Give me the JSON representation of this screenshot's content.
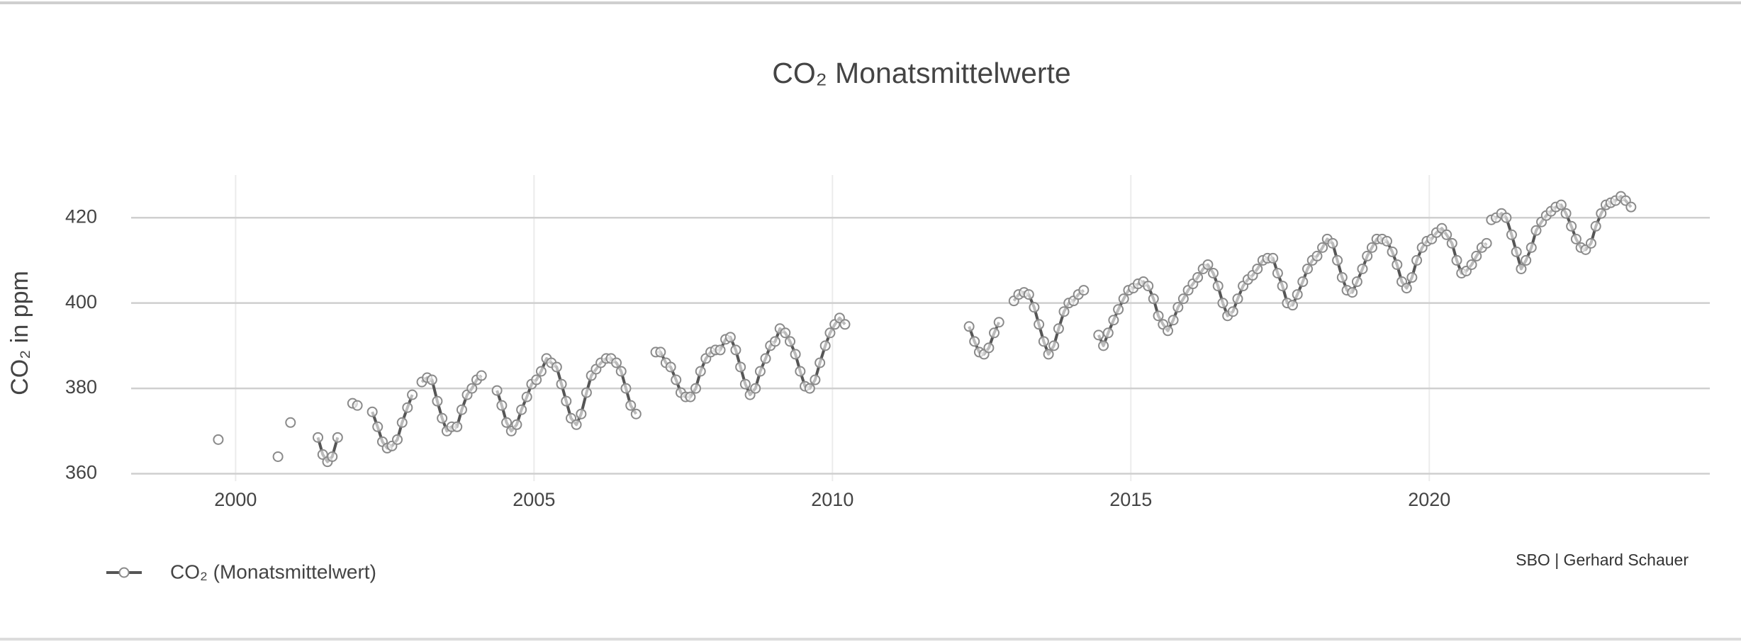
{
  "chart_data": {
    "type": "line",
    "title": "CO₂ Monatsmittelwerte",
    "y_label": "CO₂ in ppm",
    "source": "SBO | Gerhard Schauer",
    "xlim": [
      1998.25,
      2024.7
    ],
    "ylim": [
      356.6,
      430
    ],
    "xticks": [
      2000,
      2005,
      2010,
      2015,
      2020
    ],
    "yticks": [
      360,
      380,
      400,
      420
    ],
    "grid": true,
    "legend": "bottom-left",
    "series": [
      {
        "name": "CO₂ (Monatsmittelwert)",
        "color": "#555555",
        "x": [
          1999.71,
          null,
          2000.71,
          null,
          2000.92,
          null,
          2001.38,
          2001.46,
          2001.54,
          2001.62,
          2001.71,
          null,
          2001.96,
          2002.04,
          null,
          2002.29,
          2002.38,
          2002.46,
          2002.54,
          2002.62,
          2002.71,
          2002.79,
          2002.88,
          2002.96,
          null,
          2003.12,
          2003.21,
          2003.29,
          2003.38,
          2003.46,
          2003.54,
          2003.62,
          2003.71,
          2003.79,
          2003.88,
          2003.96,
          2004.04,
          2004.12,
          null,
          2004.38,
          2004.46,
          2004.54,
          2004.62,
          2004.71,
          2004.79,
          2004.88,
          2004.96,
          2005.04,
          2005.12,
          2005.21,
          2005.29,
          2005.38,
          2005.46,
          2005.54,
          2005.62,
          2005.71,
          2005.79,
          2005.88,
          2005.96,
          2006.04,
          2006.12,
          2006.21,
          2006.29,
          2006.38,
          2006.46,
          2006.54,
          2006.62,
          2006.71,
          null,
          2007.04,
          2007.12,
          2007.21,
          2007.29,
          2007.38,
          2007.46,
          2007.54,
          2007.62,
          2007.71,
          2007.79,
          2007.88,
          2007.96,
          2008.04,
          2008.12,
          2008.21,
          2008.29,
          2008.38,
          2008.46,
          2008.54,
          2008.62,
          2008.71,
          2008.79,
          2008.88,
          2008.96,
          2009.04,
          2009.12,
          2009.21,
          2009.29,
          2009.38,
          2009.46,
          2009.54,
          2009.62,
          2009.71,
          2009.79,
          2009.88,
          2009.96,
          2010.04,
          2010.12,
          2010.21,
          null,
          2012.29,
          2012.38,
          2012.46,
          2012.54,
          2012.62,
          2012.71,
          2012.79,
          null,
          2013.04,
          2013.12,
          2013.21,
          2013.29,
          2013.38,
          2013.46,
          2013.54,
          2013.62,
          2013.71,
          2013.79,
          2013.88,
          2013.96,
          2014.04,
          2014.12,
          2014.21,
          null,
          2014.46,
          2014.54,
          2014.62,
          2014.71,
          2014.79,
          2014.88,
          2014.96,
          2015.04,
          2015.12,
          2015.21,
          2015.29,
          2015.38,
          2015.46,
          2015.54,
          2015.62,
          2015.71,
          2015.79,
          2015.88,
          2015.96,
          2016.04,
          2016.12,
          2016.21,
          2016.29,
          2016.38,
          2016.46,
          2016.54,
          2016.62,
          2016.71,
          2016.79,
          2016.88,
          2016.96,
          2017.04,
          2017.12,
          2017.21,
          2017.29,
          2017.38,
          2017.46,
          2017.54,
          2017.62,
          2017.71,
          2017.79,
          2017.88,
          2017.96,
          2018.04,
          2018.12,
          2018.21,
          2018.29,
          2018.38,
          2018.46,
          2018.54,
          2018.62,
          2018.71,
          2018.79,
          2018.88,
          2018.96,
          2019.04,
          2019.12,
          2019.21,
          2019.29,
          2019.38,
          2019.46,
          2019.54,
          2019.62,
          2019.71,
          2019.79,
          2019.88,
          2019.96,
          2020.04,
          2020.12,
          2020.21,
          2020.29,
          2020.38,
          2020.46,
          2020.54,
          2020.62,
          2020.71,
          2020.79,
          2020.88,
          2020.96,
          null,
          2021.04,
          2021.12,
          2021.21,
          2021.29,
          2021.38,
          2021.46,
          2021.54,
          2021.62,
          2021.71,
          2021.79,
          2021.88,
          2021.96,
          2022.04,
          2022.12,
          2022.21,
          2022.29,
          2022.38,
          2022.46,
          2022.54,
          2022.62,
          2022.71,
          2022.79,
          2022.88,
          2022.96,
          2023.04,
          2023.12,
          2023.21,
          2023.29,
          2023.38
        ],
        "values": [
          368,
          null,
          364,
          null,
          372,
          null,
          368.5,
          364.5,
          362.8,
          364,
          368.5,
          null,
          376.5,
          376,
          null,
          374.5,
          371,
          367.5,
          366,
          366.5,
          368,
          372,
          375.5,
          378.5,
          null,
          381.5,
          382.5,
          382,
          377,
          373,
          370,
          371,
          371,
          375,
          378.5,
          380,
          382,
          383,
          null,
          379.5,
          376,
          372,
          370,
          371.5,
          375,
          378,
          381,
          382,
          384,
          387,
          386,
          385,
          381,
          377,
          373,
          371.5,
          374,
          379,
          383,
          384.5,
          386,
          387,
          387,
          386,
          384,
          380,
          376,
          374,
          null,
          388.5,
          388.5,
          386,
          385,
          382,
          379,
          378,
          378,
          380,
          384,
          387,
          388.5,
          389,
          389,
          391.5,
          392,
          389,
          385,
          381,
          378.5,
          380,
          384,
          387,
          390,
          391,
          394,
          393,
          391,
          388,
          384,
          380.5,
          380,
          382,
          386,
          390,
          393,
          395,
          396.5,
          395,
          null,
          394.5,
          391,
          388.5,
          388,
          389.5,
          393,
          395.5,
          null,
          400.5,
          402,
          402.5,
          402,
          399,
          395,
          391,
          388,
          390,
          394,
          398,
          400,
          400.5,
          402,
          403,
          null,
          392.5,
          390,
          393,
          396,
          398.5,
          401,
          403,
          403.5,
          404.5,
          405,
          404,
          401,
          397,
          395,
          393.5,
          396,
          399,
          401,
          403,
          404.5,
          406,
          408,
          409,
          407,
          404,
          400,
          397,
          398,
          401,
          404,
          405.5,
          406.5,
          408,
          410,
          410.5,
          410.5,
          407,
          404,
          400,
          399.5,
          402,
          405,
          408,
          410,
          411,
          413,
          415,
          414,
          410,
          406,
          403,
          402.5,
          405,
          408,
          411,
          413,
          415,
          415,
          414.5,
          412,
          409,
          405,
          403.5,
          406,
          410,
          413,
          414.5,
          415,
          416.5,
          417.5,
          416,
          414,
          410,
          407,
          407.5,
          409,
          411,
          413,
          414,
          null,
          419.5,
          420,
          421,
          420,
          416,
          412,
          408,
          410,
          413,
          417,
          419,
          420.5,
          421.5,
          422.5,
          423,
          421,
          418,
          415,
          413,
          412.5,
          414,
          418,
          421,
          423,
          423.5,
          424,
          425,
          424,
          422.5
        ]
      }
    ]
  }
}
